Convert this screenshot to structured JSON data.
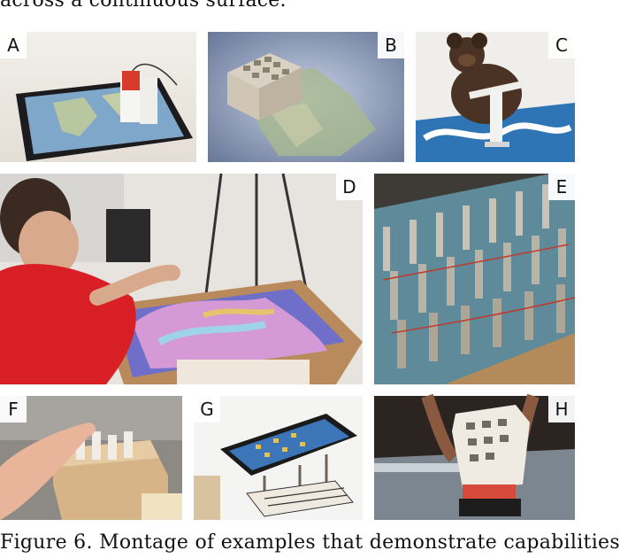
{
  "header_text": "across a continuous surface.",
  "footer_text": "Figure 6. Montage of examples that demonstrate capabilities",
  "panels": [
    {
      "id": "A",
      "name": "tablet-map-device"
    },
    {
      "id": "B",
      "name": "cube-on-map"
    },
    {
      "id": "C",
      "name": "teddy-bear-device"
    },
    {
      "id": "D",
      "name": "person-touching-surface"
    },
    {
      "id": "E",
      "name": "actuator-array"
    },
    {
      "id": "F",
      "name": "hand-on-box"
    },
    {
      "id": "G",
      "name": "tablet-on-rig"
    },
    {
      "id": "H",
      "name": "hands-holding-cube"
    }
  ]
}
